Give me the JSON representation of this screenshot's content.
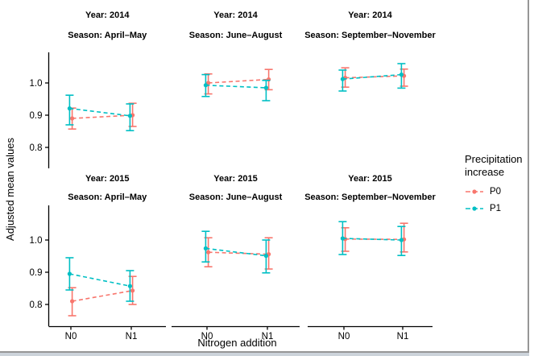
{
  "chart_data": {
    "type": "line",
    "subtype": "point-errorbar-faceted",
    "x_categories": [
      "N0",
      "N1"
    ],
    "xlabel": "Nitrogen addition",
    "ylabel": "Adjusted mean values",
    "y_tick_labels": [
      "1.0",
      "0.9",
      "0.8"
    ],
    "ylim": [
      0.74,
      1.1
    ],
    "grid": "off",
    "legend": {
      "title": "Precipitation increase",
      "position": "right",
      "entries": [
        {
          "label": "P0",
          "color": "#F8766D"
        },
        {
          "label": "P1",
          "color": "#00BFC4"
        }
      ]
    },
    "facets": [
      {
        "row": 0,
        "col": 0,
        "year_label": "Year: 2014",
        "season_label": "Season: April–May",
        "series": [
          {
            "name": "P0",
            "color": "#F8766D",
            "points": [
              {
                "x": "N0",
                "mean": 0.89,
                "lo": 0.857,
                "hi": 0.922
              },
              {
                "x": "N1",
                "mean": 0.9,
                "lo": 0.865,
                "hi": 0.937
              }
            ]
          },
          {
            "name": "P1",
            "color": "#00BFC4",
            "points": [
              {
                "x": "N0",
                "mean": 0.921,
                "lo": 0.87,
                "hi": 0.962
              },
              {
                "x": "N1",
                "mean": 0.898,
                "lo": 0.852,
                "hi": 0.935
              }
            ]
          }
        ]
      },
      {
        "row": 0,
        "col": 1,
        "year_label": "Year: 2014",
        "season_label": "Season: June–August",
        "series": [
          {
            "name": "P0",
            "color": "#F8766D",
            "points": [
              {
                "x": "N0",
                "mean": 1.0,
                "lo": 0.966,
                "hi": 1.028
              },
              {
                "x": "N1",
                "mean": 1.011,
                "lo": 0.979,
                "hi": 1.042
              }
            ]
          },
          {
            "name": "P1",
            "color": "#00BFC4",
            "points": [
              {
                "x": "N0",
                "mean": 0.993,
                "lo": 0.958,
                "hi": 1.026
              },
              {
                "x": "N1",
                "mean": 0.985,
                "lo": 0.945,
                "hi": 1.008
              }
            ]
          }
        ]
      },
      {
        "row": 0,
        "col": 2,
        "year_label": "Year: 2014",
        "season_label": "Season: September–November",
        "series": [
          {
            "name": "P0",
            "color": "#F8766D",
            "points": [
              {
                "x": "N0",
                "mean": 1.016,
                "lo": 0.987,
                "hi": 1.047
              },
              {
                "x": "N1",
                "mean": 1.022,
                "lo": 0.99,
                "hi": 1.043
              }
            ]
          },
          {
            "name": "P1",
            "color": "#00BFC4",
            "points": [
              {
                "x": "N0",
                "mean": 1.012,
                "lo": 0.975,
                "hi": 1.04
              },
              {
                "x": "N1",
                "mean": 1.026,
                "lo": 0.984,
                "hi": 1.06
              }
            ]
          }
        ]
      },
      {
        "row": 1,
        "col": 0,
        "year_label": "Year: 2015",
        "season_label": "Season: April–May",
        "series": [
          {
            "name": "P0",
            "color": "#F8766D",
            "points": [
              {
                "x": "N0",
                "mean": 0.81,
                "lo": 0.765,
                "hi": 0.852
              },
              {
                "x": "N1",
                "mean": 0.843,
                "lo": 0.8,
                "hi": 0.887
              }
            ]
          },
          {
            "name": "P1",
            "color": "#00BFC4",
            "points": [
              {
                "x": "N0",
                "mean": 0.895,
                "lo": 0.845,
                "hi": 0.945
              },
              {
                "x": "N1",
                "mean": 0.857,
                "lo": 0.81,
                "hi": 0.905
              }
            ]
          }
        ]
      },
      {
        "row": 1,
        "col": 1,
        "year_label": "Year: 2015",
        "season_label": "Season: June–August",
        "series": [
          {
            "name": "P0",
            "color": "#F8766D",
            "points": [
              {
                "x": "N0",
                "mean": 0.962,
                "lo": 0.917,
                "hi": 1.007
              },
              {
                "x": "N1",
                "mean": 0.956,
                "lo": 0.91,
                "hi": 1.007
              }
            ]
          },
          {
            "name": "P1",
            "color": "#00BFC4",
            "points": [
              {
                "x": "N0",
                "mean": 0.974,
                "lo": 0.932,
                "hi": 1.027
              },
              {
                "x": "N1",
                "mean": 0.951,
                "lo": 0.898,
                "hi": 1.0
              }
            ]
          }
        ]
      },
      {
        "row": 1,
        "col": 2,
        "year_label": "Year: 2015",
        "season_label": "Season: September–November",
        "series": [
          {
            "name": "P0",
            "color": "#F8766D",
            "points": [
              {
                "x": "N0",
                "mean": 1.003,
                "lo": 0.965,
                "hi": 1.038
              },
              {
                "x": "N1",
                "mean": 1.002,
                "lo": 0.963,
                "hi": 1.052
              }
            ]
          },
          {
            "name": "P1",
            "color": "#00BFC4",
            "points": [
              {
                "x": "N0",
                "mean": 1.005,
                "lo": 0.955,
                "hi": 1.057
              },
              {
                "x": "N1",
                "mean": 1.0,
                "lo": 0.952,
                "hi": 1.042
              }
            ]
          }
        ]
      }
    ]
  }
}
